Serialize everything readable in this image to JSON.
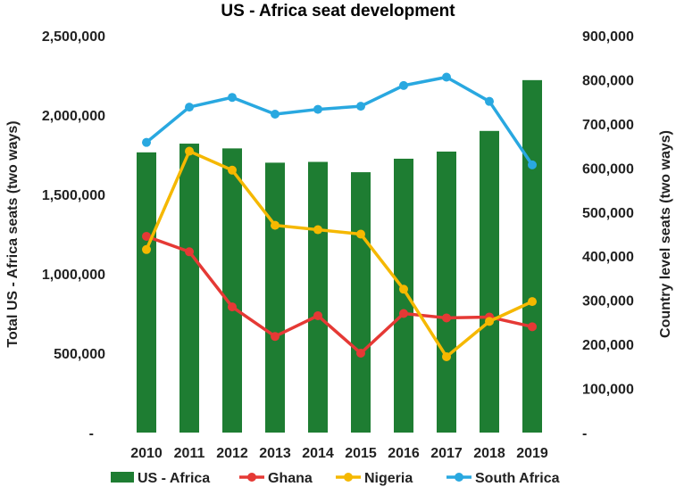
{
  "chart_data": {
    "type": "bar",
    "title": "US - Africa seat development",
    "categories": [
      "2010",
      "2011",
      "2012",
      "2013",
      "2014",
      "2015",
      "2016",
      "2017",
      "2018",
      "2019"
    ],
    "left_axis": {
      "label": "Total US - Africa seats (two ways)",
      "ylim": [
        0,
        2500000
      ],
      "ticks": [
        0,
        500000,
        1000000,
        1500000,
        2000000,
        2500000
      ],
      "tick_labels": [
        "-",
        "500,000",
        "1,000,000",
        "1,500,000",
        "2,000,000",
        "2,500,000"
      ]
    },
    "right_axis": {
      "label": "Country level seats (two ways)",
      "ylim": [
        0,
        900000
      ],
      "ticks": [
        0,
        100000,
        200000,
        300000,
        400000,
        500000,
        600000,
        700000,
        800000,
        900000
      ],
      "tick_labels": [
        "-",
        "100,000",
        "200,000",
        "300,000",
        "400,000",
        "500,000",
        "600,000",
        "700,000",
        "800,000",
        "900,000"
      ]
    },
    "series": [
      {
        "name": "US - Africa",
        "type": "bar",
        "axis": "left",
        "color": "#1e7d32",
        "values": [
          1765000,
          1820000,
          1790000,
          1700000,
          1705000,
          1640000,
          1725000,
          1770000,
          1900000,
          2220000
        ]
      },
      {
        "name": "Ghana",
        "type": "line",
        "axis": "right",
        "color": "#e53935",
        "values": [
          445000,
          410000,
          285000,
          218000,
          265000,
          180000,
          270000,
          260000,
          262000,
          240000
        ]
      },
      {
        "name": "Nigeria",
        "type": "line",
        "axis": "right",
        "color": "#f5b800",
        "values": [
          415000,
          638000,
          595000,
          470000,
          460000,
          450000,
          325000,
          172000,
          252000,
          297000
        ]
      },
      {
        "name": "South Africa",
        "type": "line",
        "axis": "right",
        "color": "#29a8e0",
        "values": [
          658000,
          738000,
          760000,
          722000,
          733000,
          740000,
          787000,
          806000,
          751000,
          607000
        ]
      }
    ],
    "grid": false,
    "legend_position": "bottom"
  }
}
